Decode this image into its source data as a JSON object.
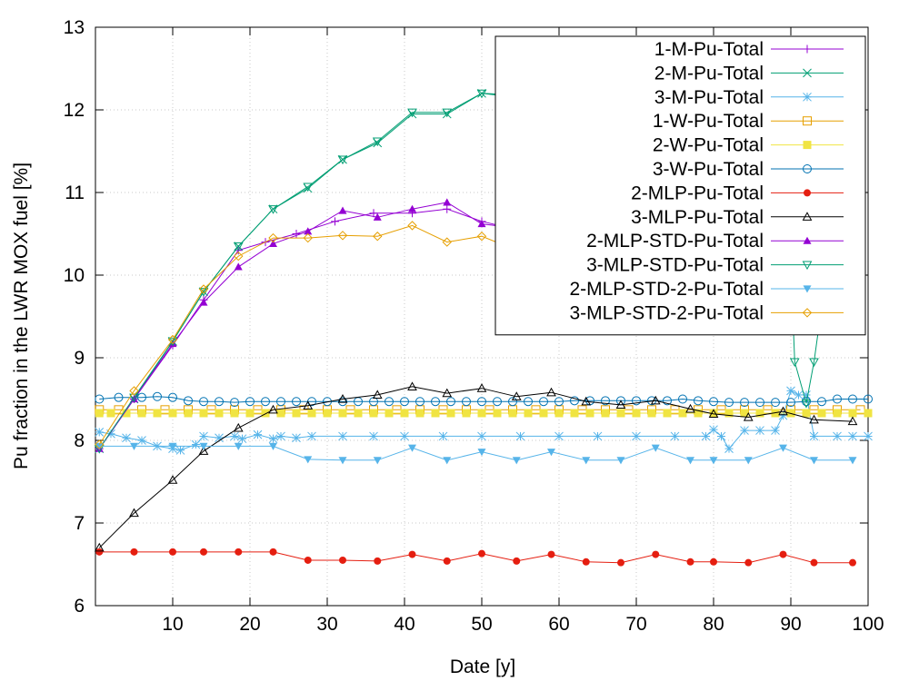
{
  "chart_data": {
    "type": "line",
    "xlabel": "Date [y]",
    "ylabel": "Pu fraction in the LWR MOX fuel [%]",
    "xlim": [
      0,
      100
    ],
    "ylim": [
      6,
      13
    ],
    "xticks": [
      10,
      20,
      30,
      40,
      50,
      60,
      70,
      80,
      90,
      100
    ],
    "yticks": [
      6,
      7,
      8,
      9,
      10,
      11,
      12,
      13
    ],
    "grid": true,
    "legend_position": "top-right",
    "series": [
      {
        "name": "1-M-Pu-Total",
        "color": "#9400d3",
        "marker": "plus",
        "x": [
          0.5,
          5,
          10,
          14,
          18.5,
          22,
          26,
          31,
          36,
          41,
          45.5,
          50,
          54.5,
          59,
          63.5,
          68,
          72.5,
          77,
          81.5,
          86,
          90.5,
          95,
          98
        ],
        "y": [
          7.9,
          8.5,
          9.15,
          9.7,
          10.3,
          10.4,
          10.5,
          10.65,
          10.75,
          10.75,
          10.8,
          10.65,
          10.55,
          10.4,
          10.3,
          10.2,
          10.1,
          10.0,
          9.9,
          9.8,
          9.75,
          9.75,
          9.8
        ]
      },
      {
        "name": "2-M-Pu-Total",
        "color": "#009e73",
        "marker": "cross",
        "x": [
          0.5,
          5,
          10,
          14,
          18.5,
          23,
          27.5,
          32,
          36.5,
          41,
          45.5,
          50,
          54.5,
          59,
          63.5,
          68,
          72.5,
          77,
          81.5,
          86,
          89,
          93,
          98
        ],
        "y": [
          7.9,
          8.5,
          9.2,
          9.8,
          10.35,
          10.8,
          11.05,
          11.4,
          11.6,
          11.95,
          11.95,
          12.2,
          12.15,
          12.35,
          12.3,
          12.3,
          12.35,
          12.35,
          12.35,
          12.35,
          12.4,
          12.35,
          12.3
        ]
      },
      {
        "name": "3-M-Pu-Total",
        "color": "#56b4e9",
        "marker": "star",
        "x": [
          0.5,
          2,
          4,
          6,
          8,
          10,
          11,
          13,
          14,
          16,
          18,
          19,
          21,
          23,
          24,
          26,
          28,
          32,
          36,
          40,
          45,
          50,
          55,
          60,
          65,
          70,
          75,
          79,
          80,
          81,
          82,
          84,
          86,
          88,
          89,
          90,
          91,
          92,
          93,
          96,
          98,
          100
        ],
        "y": [
          8.1,
          8.08,
          8.03,
          8.0,
          7.93,
          7.9,
          7.88,
          7.95,
          8.05,
          8.03,
          8.05,
          8.02,
          8.07,
          8.02,
          8.05,
          8.03,
          8.05,
          8.05,
          8.05,
          8.05,
          8.05,
          8.05,
          8.05,
          8.05,
          8.05,
          8.05,
          8.05,
          8.05,
          8.13,
          8.05,
          7.9,
          8.12,
          8.12,
          8.12,
          8.3,
          8.6,
          8.55,
          8.55,
          8.05,
          8.05,
          8.05,
          8.05
        ]
      },
      {
        "name": "1-W-Pu-Total",
        "color": "#e69f00",
        "marker": "open-square",
        "x": [
          0.5,
          3,
          6,
          9,
          12,
          15,
          18,
          21,
          24,
          27,
          30,
          33,
          36,
          39,
          42,
          45,
          48,
          51,
          54,
          57,
          60,
          63,
          66,
          69,
          72,
          75,
          78,
          81,
          84,
          87,
          90,
          93,
          96,
          99
        ],
        "y": [
          8.37,
          8.37,
          8.37,
          8.37,
          8.37,
          8.37,
          8.37,
          8.37,
          8.37,
          8.37,
          8.37,
          8.37,
          8.37,
          8.37,
          8.37,
          8.37,
          8.37,
          8.37,
          8.37,
          8.37,
          8.37,
          8.37,
          8.37,
          8.37,
          8.37,
          8.37,
          8.37,
          8.37,
          8.37,
          8.37,
          8.37,
          8.37,
          8.37,
          8.37
        ]
      },
      {
        "name": "2-W-Pu-Total",
        "color": "#f0e442",
        "marker": "filled-square",
        "x": [
          0.5,
          2,
          4,
          6,
          8,
          10,
          12,
          14,
          16,
          18,
          20,
          22,
          24,
          26,
          28,
          30,
          32,
          34,
          36,
          38,
          40,
          42,
          44,
          46,
          48,
          50,
          52,
          54,
          56,
          58,
          60,
          62,
          64,
          66,
          68,
          70,
          72,
          74,
          76,
          78,
          80,
          82,
          84,
          86,
          88,
          90,
          92,
          94,
          96,
          98,
          100
        ],
        "y": [
          8.33,
          8.33,
          8.33,
          8.33,
          8.33,
          8.33,
          8.33,
          8.33,
          8.33,
          8.33,
          8.33,
          8.33,
          8.33,
          8.33,
          8.33,
          8.33,
          8.33,
          8.33,
          8.33,
          8.33,
          8.33,
          8.33,
          8.33,
          8.33,
          8.33,
          8.33,
          8.33,
          8.33,
          8.33,
          8.33,
          8.33,
          8.33,
          8.33,
          8.33,
          8.33,
          8.33,
          8.33,
          8.33,
          8.33,
          8.33,
          8.33,
          8.33,
          8.33,
          8.33,
          8.33,
          8.33,
          8.33,
          8.33,
          8.33,
          8.33,
          8.33
        ]
      },
      {
        "name": "3-W-Pu-Total",
        "color": "#0072b2",
        "marker": "open-circle",
        "x": [
          0.5,
          3,
          6,
          8,
          10,
          12,
          14,
          16,
          18,
          20,
          22,
          24,
          26,
          28,
          30,
          32,
          34,
          36,
          38,
          40,
          42,
          44,
          46,
          48,
          50,
          52,
          54,
          56,
          58,
          60,
          62,
          64,
          66,
          68,
          70,
          72,
          74,
          76,
          78,
          80,
          82,
          84,
          86,
          88,
          90,
          92,
          94,
          96,
          98,
          100
        ],
        "y": [
          8.5,
          8.52,
          8.52,
          8.53,
          8.52,
          8.48,
          8.47,
          8.47,
          8.46,
          8.47,
          8.47,
          8.47,
          8.47,
          8.47,
          8.47,
          8.47,
          8.47,
          8.47,
          8.47,
          8.47,
          8.47,
          8.47,
          8.47,
          8.47,
          8.47,
          8.47,
          8.47,
          8.47,
          8.47,
          8.47,
          8.48,
          8.48,
          8.48,
          8.48,
          8.48,
          8.48,
          8.48,
          8.5,
          8.48,
          8.47,
          8.46,
          8.46,
          8.46,
          8.46,
          8.46,
          8.47,
          8.47,
          8.5,
          8.5,
          8.5
        ]
      },
      {
        "name": "2-MLP-Pu-Total",
        "color": "#e51e10",
        "marker": "filled-circle",
        "x": [
          0.5,
          5,
          10,
          14,
          18.5,
          23,
          27.5,
          32,
          36.5,
          41,
          45.5,
          50,
          54.5,
          59,
          63.5,
          68,
          72.5,
          77,
          80,
          84.5,
          89,
          93,
          98
        ],
        "y": [
          6.65,
          6.65,
          6.65,
          6.65,
          6.65,
          6.65,
          6.55,
          6.55,
          6.54,
          6.62,
          6.54,
          6.63,
          6.54,
          6.62,
          6.53,
          6.52,
          6.62,
          6.53,
          6.53,
          6.52,
          6.62,
          6.52,
          6.52
        ]
      },
      {
        "name": "3-MLP-Pu-Total",
        "color": "#000000",
        "marker": "open-triangle",
        "x": [
          0.5,
          5,
          10,
          14,
          18.5,
          23,
          27.5,
          32,
          36.5,
          41,
          45.5,
          50,
          54.5,
          59,
          63.5,
          68,
          72.5,
          77,
          80,
          84.5,
          89,
          93,
          98
        ],
        "y": [
          6.7,
          7.12,
          7.52,
          7.87,
          8.15,
          8.37,
          8.42,
          8.5,
          8.55,
          8.65,
          8.57,
          8.63,
          8.53,
          8.58,
          8.47,
          8.43,
          8.48,
          8.38,
          8.32,
          8.28,
          8.35,
          8.25,
          8.23
        ]
      },
      {
        "name": "2-MLP-STD-Pu-Total",
        "color": "#9400d3",
        "marker": "filled-triangle",
        "x": [
          0.5,
          5,
          10,
          14,
          18.5,
          23,
          27.5,
          32,
          36.5,
          41,
          45.5,
          50,
          54.5,
          59,
          63.5,
          68,
          72.5,
          77,
          80,
          84.5,
          89,
          93,
          98
        ],
        "y": [
          7.9,
          8.5,
          9.17,
          9.67,
          10.1,
          10.38,
          10.53,
          10.78,
          10.7,
          10.8,
          10.88,
          10.62,
          10.57,
          10.35,
          10.23,
          10.2,
          10.05,
          9.95,
          9.82,
          9.8,
          9.75,
          9.7,
          9.8
        ]
      },
      {
        "name": "3-MLP-STD-Pu-Total",
        "color": "#009e73",
        "marker": "open-inverted-triangle",
        "x": [
          0.5,
          5,
          10,
          14,
          18.5,
          23,
          27.5,
          32,
          36.5,
          41,
          45.5,
          50,
          54.5,
          59,
          63.5,
          68,
          72.5,
          77,
          80,
          84.5,
          89,
          90.5,
          92,
          93,
          98
        ],
        "y": [
          7.9,
          8.52,
          9.2,
          9.8,
          10.35,
          10.8,
          11.07,
          11.4,
          11.62,
          11.97,
          11.97,
          12.2,
          12.18,
          12.35,
          12.3,
          12.3,
          12.4,
          12.35,
          12.35,
          12.35,
          12.45,
          8.95,
          8.45,
          8.95,
          12.32
        ]
      },
      {
        "name": "2-MLP-STD-2-Pu-Total",
        "color": "#56b4e9",
        "marker": "filled-inverted-triangle",
        "x": [
          0.5,
          5,
          10,
          14,
          18.5,
          23,
          27.5,
          32,
          36.5,
          41,
          45.5,
          50,
          54.5,
          59,
          63.5,
          68,
          72.5,
          77,
          80,
          84.5,
          89,
          93,
          98
        ],
        "y": [
          7.93,
          7.93,
          7.93,
          7.93,
          7.93,
          7.93,
          7.77,
          7.76,
          7.76,
          7.91,
          7.76,
          7.86,
          7.76,
          7.86,
          7.76,
          7.76,
          7.91,
          7.76,
          7.76,
          7.76,
          7.91,
          7.76,
          7.76
        ]
      },
      {
        "name": "3-MLP-STD-2-Pu-Total",
        "color": "#e69f00",
        "marker": "open-diamond",
        "x": [
          0.5,
          5,
          10,
          14,
          18.5,
          23,
          27.5,
          32,
          36.5,
          41,
          45.5,
          50,
          54.5,
          59,
          63.5,
          68,
          72.5,
          77,
          80,
          84.5,
          89,
          93,
          98
        ],
        "y": [
          7.95,
          8.6,
          9.22,
          9.83,
          10.23,
          10.45,
          10.45,
          10.48,
          10.47,
          10.6,
          10.4,
          10.47,
          10.3,
          10.33,
          10.18,
          10.18,
          10.18,
          10.05,
          9.88,
          9.88,
          9.97,
          9.85,
          9.8
        ]
      }
    ]
  }
}
